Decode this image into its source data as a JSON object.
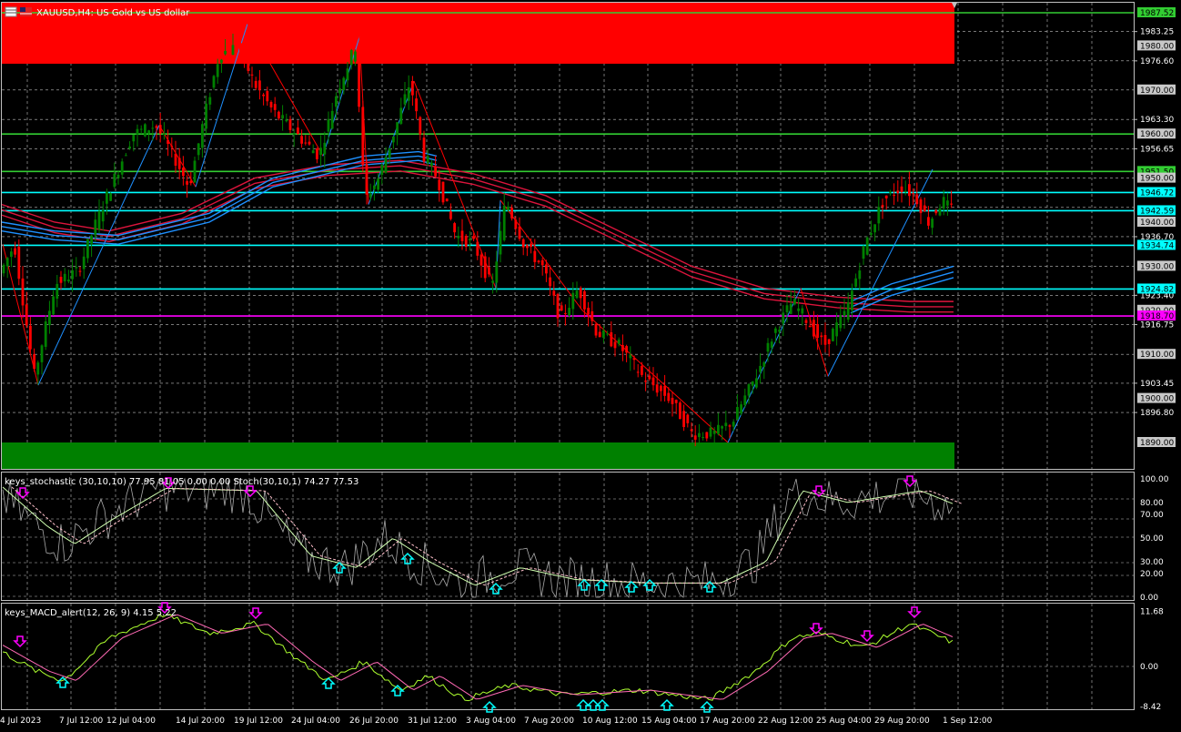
{
  "window": {
    "title": "XAUUSD,H4: US Gold vs US dollar",
    "symbol_icon": "chart-window-icon",
    "flag_icon": "us-flag-icon"
  },
  "colors": {
    "background": "#000000",
    "grid": "#c0c0c0",
    "bull_candle": "#008000",
    "bear_candle": "#ff0000",
    "ma_red": "#dc143c",
    "ma_blue": "#1e90ff",
    "resistance_zone": "#ff0000",
    "support_zone": "#008000",
    "level_green": "#32cd32",
    "level_cyan": "#00ffff",
    "level_magenta": "#ff00ff",
    "arrow_down": "#ff00ff",
    "arrow_up": "#00ffff",
    "stoch_main": "#ffffff",
    "stoch_signal": "#ffc0cb",
    "macd_main": "#adff2f",
    "macd_signal": "#ff69b4"
  },
  "price_axis": {
    "ticks": [
      "1983.25",
      "1976.60",
      "1963.30",
      "1956.65",
      "1936.70",
      "1923.40",
      "1916.75",
      "1903.45",
      "1896.80"
    ],
    "labels": [
      {
        "text": "1987.52",
        "style": "green"
      },
      {
        "text": "1980.00",
        "style": "gray"
      },
      {
        "text": "1970.00",
        "style": "gray"
      },
      {
        "text": "1960.00",
        "style": "gray"
      },
      {
        "text": "1951.50",
        "style": "green"
      },
      {
        "text": "1950.00",
        "style": "gray"
      },
      {
        "text": "1946.72",
        "style": "cyan"
      },
      {
        "text": "1942.59",
        "style": "cyan"
      },
      {
        "text": "1940.00",
        "style": "gray"
      },
      {
        "text": "1934.74",
        "style": "cyan"
      },
      {
        "text": "1930.00",
        "style": "gray"
      },
      {
        "text": "1924.82",
        "style": "cyan"
      },
      {
        "text": "1920.00",
        "style": "gray"
      },
      {
        "text": "1918.70",
        "style": "magenta"
      },
      {
        "text": "1910.00",
        "style": "gray"
      },
      {
        "text": "1900.00",
        "style": "gray"
      },
      {
        "text": "1890.00",
        "style": "gray"
      }
    ]
  },
  "time_axis": [
    "4 Jul 2023",
    "7 Jul 12:00",
    "12 Jul 04:00",
    "14 Jul 20:00",
    "19 Jul 12:00",
    "24 Jul 04:00",
    "26 Jul 20:00",
    "31 Jul 12:00",
    "3 Aug 04:00",
    "7 Aug 20:00",
    "10 Aug 12:00",
    "15 Aug 04:00",
    "17 Aug 20:00",
    "22 Aug 12:00",
    "25 Aug 04:00",
    "29 Aug 20:00",
    "1 Sep 12:00"
  ],
  "stochastic": {
    "title": "keys_stochastic (30,10,10) 77.95 81.05 0.00 0.00 Stoch(30,10,1) 74.27 77.53",
    "ticks": [
      "100.00",
      "80.00",
      "70.00",
      "50.00",
      "30.00",
      "20.00",
      "0.00"
    ]
  },
  "macd": {
    "title": "keys_MACD_alert(12, 26, 9) 4.15 5.22",
    "ticks": [
      "11.68",
      "0.00",
      "-8.42"
    ]
  }
}
